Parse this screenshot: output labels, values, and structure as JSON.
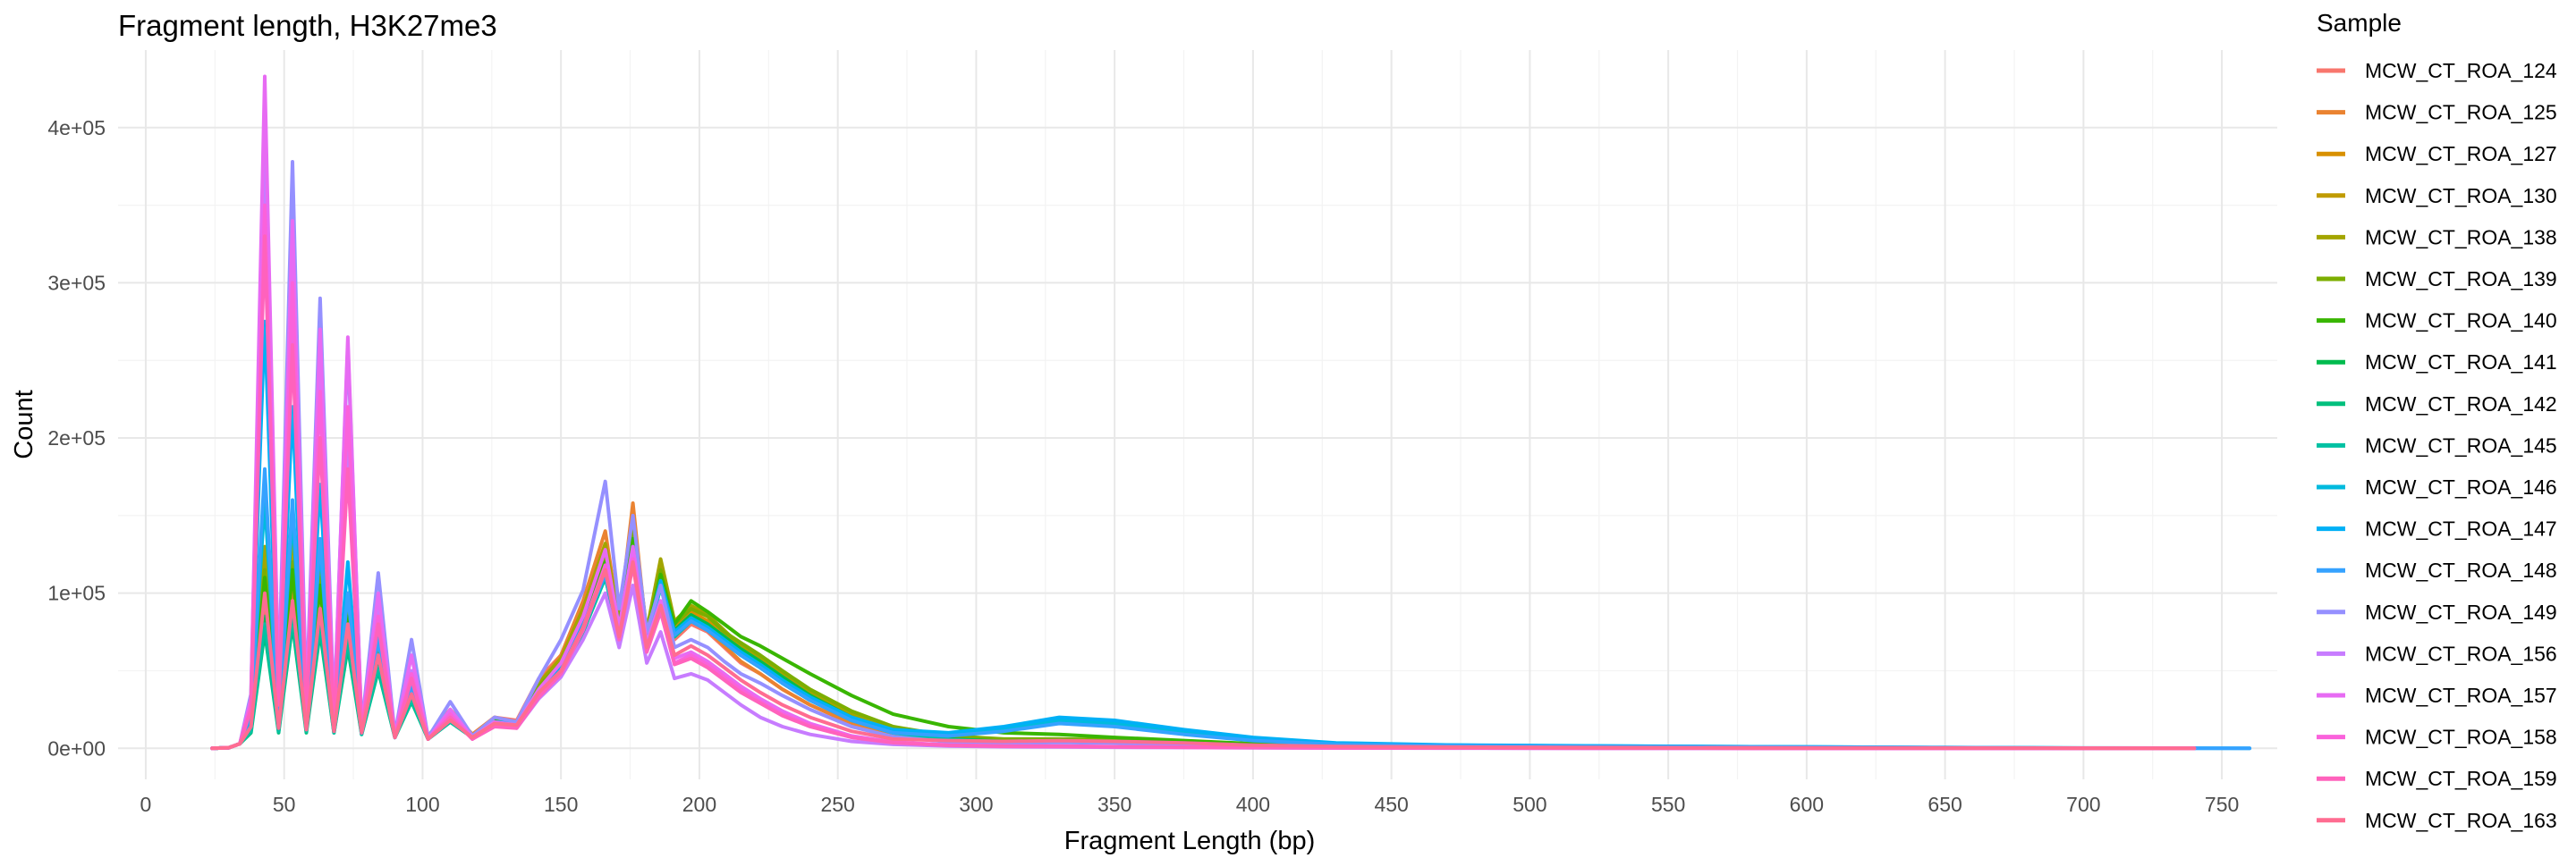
{
  "chart_data": {
    "type": "line",
    "title": "Fragment length, H3K27me3",
    "xlabel": "Fragment Length (bp)",
    "ylabel": "Count",
    "xlim": [
      -10,
      770
    ],
    "ylim": [
      -20000,
      450000
    ],
    "x_ticks": [
      0,
      50,
      100,
      150,
      200,
      250,
      300,
      350,
      400,
      450,
      500,
      550,
      600,
      650,
      700,
      750
    ],
    "x_tick_labels": [
      "0",
      "50",
      "100",
      "150",
      "200",
      "250",
      "300",
      "350",
      "400",
      "450",
      "500",
      "550",
      "600",
      "650",
      "700",
      "750"
    ],
    "y_ticks": [
      0,
      100000,
      200000,
      300000,
      400000
    ],
    "y_tick_labels": [
      "0e+00",
      "1e+05",
      "2e+05",
      "3e+05",
      "4e+05"
    ],
    "grid": true,
    "legend": {
      "title": "Sample",
      "position": "right"
    },
    "x": [
      24,
      30,
      34,
      38,
      43,
      48,
      53,
      58,
      63,
      68,
      73,
      78,
      84,
      90,
      96,
      102,
      110,
      118,
      126,
      134,
      142,
      150,
      158,
      166,
      171,
      176,
      181,
      186,
      191,
      197,
      203,
      209,
      215,
      222,
      230,
      240,
      255,
      270,
      290,
      310,
      330,
      350,
      375,
      400,
      430,
      470,
      520,
      580,
      650,
      700,
      740,
      760
    ],
    "series": [
      {
        "name": "MCW_CT_ROA_124",
        "color": "#F8766D",
        "values": [
          0,
          400,
          3000,
          15000,
          90000,
          15000,
          100000,
          15000,
          105000,
          15000,
          95000,
          12000,
          80000,
          8000,
          45000,
          8000,
          25000,
          9000,
          20000,
          18000,
          45000,
          60000,
          90000,
          130000,
          80000,
          150000,
          70000,
          110000,
          70000,
          80000,
          75000,
          65000,
          55000,
          48000,
          38000,
          28000,
          16000,
          9000,
          5000,
          4000,
          5000,
          4500,
          3500,
          2000,
          1200,
          800,
          500,
          300,
          200,
          100,
          0,
          null
        ]
      },
      {
        "name": "MCW_CT_ROA_125",
        "color": "#EA8331",
        "values": [
          0,
          400,
          3000,
          14000,
          95000,
          14000,
          100000,
          14000,
          110000,
          14000,
          100000,
          11000,
          85000,
          8000,
          50000,
          8000,
          25000,
          9000,
          20000,
          17000,
          42000,
          60000,
          95000,
          140000,
          82000,
          158000,
          72000,
          112000,
          72000,
          82000,
          76000,
          66000,
          56000,
          48000,
          38000,
          28000,
          16000,
          9000,
          5000,
          4000,
          5000,
          4500,
          3500,
          2000,
          1200,
          800,
          500,
          300,
          200,
          100,
          0,
          null
        ]
      },
      {
        "name": "MCW_CT_ROA_127",
        "color": "#D89000",
        "values": [
          0,
          400,
          3000,
          16000,
          110000,
          14000,
          115000,
          14000,
          110000,
          13000,
          95000,
          11000,
          70000,
          8000,
          40000,
          7000,
          22000,
          8000,
          18000,
          16000,
          40000,
          55000,
          85000,
          125000,
          80000,
          140000,
          72000,
          118000,
          78000,
          88000,
          82000,
          72000,
          62000,
          55000,
          45000,
          34000,
          20000,
          11000,
          6000,
          4500,
          5000,
          4500,
          3500,
          2000,
          1200,
          800,
          500,
          300,
          200,
          100,
          0,
          null
        ]
      },
      {
        "name": "MCW_CT_ROA_130",
        "color": "#C09B00",
        "values": [
          0,
          400,
          3000,
          17000,
          120000,
          14000,
          125000,
          14000,
          115000,
          13000,
          95000,
          11000,
          70000,
          8000,
          40000,
          7000,
          22000,
          8000,
          18000,
          16000,
          40000,
          55000,
          88000,
          130000,
          82000,
          145000,
          75000,
          120000,
          80000,
          90000,
          85000,
          75000,
          65000,
          58000,
          48000,
          36000,
          22000,
          12000,
          6500,
          5000,
          5500,
          5000,
          3500,
          2000,
          1200,
          800,
          500,
          300,
          200,
          100,
          0,
          null
        ]
      },
      {
        "name": "MCW_CT_ROA_138",
        "color": "#A3A500",
        "values": [
          0,
          400,
          3000,
          18000,
          130000,
          15000,
          135000,
          15000,
          120000,
          13000,
          95000,
          11000,
          70000,
          8000,
          40000,
          7000,
          22000,
          8000,
          18000,
          16000,
          42000,
          58000,
          90000,
          132000,
          84000,
          148000,
          76000,
          122000,
          82000,
          92000,
          86000,
          76000,
          66000,
          58000,
          48000,
          36000,
          22000,
          12000,
          6500,
          5000,
          5500,
          5000,
          3500,
          2000,
          1200,
          800,
          500,
          300,
          200,
          100,
          0,
          null
        ]
      },
      {
        "name": "MCW_CT_ROA_139",
        "color": "#7CAE00",
        "values": [
          0,
          400,
          3000,
          16000,
          115000,
          14000,
          120000,
          14000,
          110000,
          13000,
          90000,
          11000,
          65000,
          8000,
          38000,
          7000,
          22000,
          8000,
          18000,
          16000,
          40000,
          55000,
          85000,
          125000,
          80000,
          140000,
          75000,
          115000,
          80000,
          90000,
          85000,
          75000,
          68000,
          60000,
          50000,
          38000,
          24000,
          14000,
          8000,
          6000,
          6000,
          5500,
          4000,
          2500,
          1500,
          1000,
          600,
          400,
          200,
          100,
          0,
          null
        ]
      },
      {
        "name": "MCW_CT_ROA_140",
        "color": "#39B600",
        "values": [
          0,
          400,
          3000,
          15000,
          110000,
          14000,
          115000,
          14000,
          105000,
          13000,
          85000,
          11000,
          60000,
          8000,
          35000,
          7000,
          20000,
          8000,
          18000,
          16000,
          38000,
          52000,
          82000,
          120000,
          78000,
          135000,
          72000,
          112000,
          80000,
          95000,
          88000,
          80000,
          72000,
          66000,
          58000,
          48000,
          34000,
          22000,
          14000,
          10000,
          9000,
          7000,
          5000,
          3000,
          2000,
          1200,
          800,
          500,
          300,
          100,
          0,
          null
        ]
      },
      {
        "name": "MCW_CT_ROA_141",
        "color": "#00BB4E",
        "values": [
          0,
          400,
          3000,
          12000,
          85000,
          12000,
          90000,
          12000,
          85000,
          11000,
          75000,
          10000,
          55000,
          7000,
          32000,
          6000,
          18000,
          7000,
          16000,
          15000,
          36000,
          50000,
          78000,
          115000,
          75000,
          130000,
          70000,
          108000,
          76000,
          86000,
          80000,
          72000,
          64000,
          56000,
          46000,
          34000,
          20000,
          11000,
          6000,
          4500,
          5000,
          4500,
          3500,
          2000,
          1200,
          800,
          500,
          300,
          200,
          100,
          0,
          null
        ]
      },
      {
        "name": "MCW_CT_ROA_142",
        "color": "#00BF7D",
        "values": [
          0,
          400,
          3000,
          10000,
          75000,
          10000,
          80000,
          10000,
          75000,
          10000,
          65000,
          9000,
          50000,
          7000,
          30000,
          6000,
          17000,
          7000,
          15000,
          14000,
          34000,
          48000,
          75000,
          110000,
          72000,
          125000,
          68000,
          104000,
          72000,
          82000,
          76000,
          68000,
          60000,
          52000,
          42000,
          31000,
          18000,
          10000,
          5500,
          4200,
          4800,
          4300,
          3300,
          1900,
          1100,
          700,
          450,
          280,
          180,
          90,
          0,
          null
        ]
      },
      {
        "name": "MCW_CT_ROA_145",
        "color": "#00C1A3",
        "values": [
          0,
          400,
          3000,
          11000,
          80000,
          11000,
          85000,
          11000,
          80000,
          10000,
          70000,
          9000,
          52000,
          7000,
          31000,
          6000,
          17000,
          7000,
          15000,
          14000,
          34000,
          48000,
          75000,
          110000,
          72000,
          125000,
          68000,
          104000,
          72000,
          82000,
          76000,
          68000,
          60000,
          52000,
          42000,
          31000,
          18000,
          10000,
          5500,
          4200,
          4800,
          4300,
          3300,
          1900,
          1100,
          700,
          450,
          280,
          180,
          90,
          0,
          null
        ]
      },
      {
        "name": "MCW_CT_ROA_146",
        "color": "#00BADE",
        "values": [
          0,
          400,
          3000,
          20000,
          160000,
          15000,
          150000,
          14000,
          130000,
          12000,
          100000,
          10000,
          70000,
          7000,
          40000,
          6000,
          20000,
          7000,
          16000,
          15000,
          36000,
          50000,
          78000,
          112000,
          74000,
          128000,
          70000,
          105000,
          73000,
          82000,
          76000,
          68000,
          60000,
          52000,
          42000,
          31000,
          18000,
          10000,
          8000,
          12000,
          18000,
          16000,
          10000,
          6000,
          3000,
          2000,
          1500,
          1000,
          500,
          100,
          0,
          null
        ]
      },
      {
        "name": "MCW_CT_ROA_147",
        "color": "#00B0F6",
        "values": [
          0,
          400,
          3000,
          30000,
          275000,
          20000,
          220000,
          16000,
          170000,
          13000,
          120000,
          10000,
          75000,
          7000,
          42000,
          6000,
          22000,
          7000,
          17000,
          16000,
          38000,
          52000,
          80000,
          115000,
          76000,
          130000,
          72000,
          108000,
          75000,
          84000,
          78000,
          70000,
          62000,
          54000,
          44000,
          33000,
          20000,
          12000,
          10000,
          14000,
          20000,
          18000,
          12000,
          7000,
          3500,
          2200,
          1600,
          1000,
          500,
          200,
          100,
          0
        ]
      },
      {
        "name": "MCW_CT_ROA_148",
        "color": "#35A2FF",
        "values": [
          0,
          400,
          3000,
          22000,
          180000,
          16000,
          160000,
          14000,
          135000,
          12000,
          100000,
          10000,
          70000,
          7000,
          40000,
          6000,
          20000,
          7000,
          16000,
          15000,
          36000,
          50000,
          78000,
          112000,
          74000,
          128000,
          70000,
          105000,
          73000,
          82000,
          76000,
          68000,
          60000,
          52000,
          42000,
          31000,
          18000,
          10000,
          8000,
          11000,
          16000,
          14000,
          9000,
          5000,
          2500,
          1800,
          1200,
          800,
          400,
          150,
          50,
          0
        ]
      },
      {
        "name": "MCW_CT_ROA_149",
        "color": "#9590FF",
        "values": [
          0,
          400,
          3000,
          35000,
          400000,
          40000,
          378000,
          30000,
          290000,
          22000,
          260000,
          14000,
          113000,
          9000,
          70000,
          7000,
          30000,
          8000,
          20000,
          17000,
          45000,
          70000,
          102000,
          172000,
          90000,
          150000,
          75000,
          105000,
          65000,
          70000,
          65000,
          56000,
          48000,
          42000,
          34000,
          25000,
          14000,
          7500,
          4200,
          3200,
          3800,
          3400,
          2600,
          1500,
          900,
          600,
          400,
          250,
          150,
          80,
          0,
          null
        ]
      },
      {
        "name": "MCW_CT_ROA_156",
        "color": "#C77CFF",
        "values": [
          0,
          400,
          3000,
          30000,
          380000,
          35000,
          290000,
          25000,
          250000,
          18000,
          200000,
          12000,
          90000,
          8000,
          50000,
          6000,
          22000,
          6000,
          15000,
          13000,
          32000,
          46000,
          70000,
          100000,
          65000,
          105000,
          55000,
          75000,
          45000,
          48000,
          44000,
          36000,
          28000,
          20000,
          14000,
          9000,
          4500,
          2500,
          1500,
          1000,
          900,
          700,
          500,
          300,
          200,
          100,
          50,
          30,
          20,
          10,
          0,
          null
        ]
      },
      {
        "name": "MCW_CT_ROA_157",
        "color": "#E76BF3",
        "values": [
          0,
          400,
          3000,
          32000,
          433000,
          38000,
          340000,
          28000,
          270000,
          20000,
          265000,
          13000,
          100000,
          8000,
          60000,
          6000,
          25000,
          7000,
          17000,
          15000,
          38000,
          55000,
          85000,
          128000,
          78000,
          130000,
          68000,
          95000,
          58000,
          62000,
          56000,
          48000,
          40000,
          32000,
          24000,
          16000,
          8000,
          4000,
          2200,
          1500,
          1400,
          1100,
          800,
          500,
          300,
          200,
          100,
          60,
          40,
          20,
          0,
          null
        ]
      },
      {
        "name": "MCW_CT_ROA_158",
        "color": "#FA62DB",
        "values": [
          0,
          400,
          3000,
          28000,
          350000,
          30000,
          300000,
          24000,
          230000,
          17000,
          220000,
          12000,
          85000,
          8000,
          48000,
          6000,
          22000,
          6000,
          15000,
          14000,
          34000,
          50000,
          78000,
          118000,
          72000,
          122000,
          64000,
          90000,
          55000,
          60000,
          54000,
          46000,
          38000,
          30000,
          22000,
          15000,
          7500,
          3800,
          2000,
          1400,
          1300,
          1000,
          700,
          450,
          280,
          180,
          90,
          55,
          35,
          18,
          0,
          null
        ]
      },
      {
        "name": "MCW_CT_ROA_159",
        "color": "#FF62BC",
        "values": [
          0,
          400,
          3000,
          25000,
          330000,
          28000,
          260000,
          22000,
          200000,
          16000,
          180000,
          11000,
          80000,
          7000,
          45000,
          6000,
          20000,
          6000,
          14000,
          13000,
          33000,
          48000,
          76000,
          115000,
          70000,
          118000,
          62000,
          88000,
          54000,
          58000,
          52000,
          44000,
          36000,
          29000,
          21000,
          14000,
          7000,
          3600,
          1900,
          1300,
          1200,
          950,
          680,
          430,
          270,
          170,
          85,
          50,
          32,
          16,
          0,
          null
        ]
      },
      {
        "name": "MCW_CT_ROA_163",
        "color": "#FF6C91",
        "values": [
          0,
          400,
          3000,
          14000,
          100000,
          13000,
          95000,
          12000,
          90000,
          11000,
          80000,
          10000,
          60000,
          7000,
          35000,
          6000,
          18000,
          7000,
          16000,
          15000,
          36000,
          50000,
          78000,
          115000,
          72000,
          120000,
          65000,
          92000,
          60000,
          66000,
          60000,
          52000,
          44000,
          36000,
          28000,
          20000,
          11000,
          6000,
          5000,
          4500,
          5000,
          4500,
          3500,
          2000,
          1200,
          800,
          500,
          300,
          200,
          100,
          0,
          null
        ]
      }
    ]
  }
}
